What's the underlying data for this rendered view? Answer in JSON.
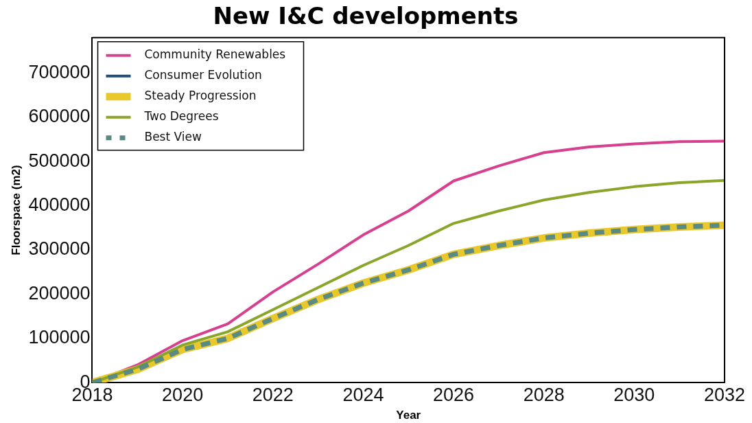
{
  "chart_data": {
    "type": "line",
    "title": "New I&C developments",
    "xlabel": "Year",
    "ylabel": "Floorspace (m2)",
    "x": [
      2018,
      2019,
      2020,
      2021,
      2022,
      2023,
      2024,
      2025,
      2026,
      2027,
      2028,
      2029,
      2030,
      2031,
      2032
    ],
    "series": [
      {
        "name": "Community Renewables",
        "color": "#d6408f",
        "values": [
          0,
          40000,
          95000,
          133000,
          205000,
          268000,
          334000,
          388000,
          456000,
          490000,
          520000,
          533000,
          540000,
          545000,
          546000
        ]
      },
      {
        "name": "Consumer Evolution",
        "color": "#1f4e79",
        "values": [
          null,
          null,
          null,
          null,
          null,
          null,
          null,
          null,
          null,
          null,
          null,
          null,
          null,
          null,
          null
        ]
      },
      {
        "name": "Steady Progression",
        "color": "#e8c82a",
        "values": [
          0,
          30000,
          75000,
          100000,
          145000,
          188000,
          225000,
          255000,
          290000,
          310000,
          327000,
          338000,
          346000,
          352000,
          356000
        ]
      },
      {
        "name": "Two Degrees",
        "color": "#8aa62a",
        "values": [
          0,
          35000,
          85000,
          115000,
          165000,
          215000,
          265000,
          310000,
          360000,
          388000,
          413000,
          430000,
          443000,
          452000,
          457000
        ]
      },
      {
        "name": "Best View",
        "color": "#5a8a82",
        "line_style": "dashed",
        "values": [
          0,
          30000,
          75000,
          100000,
          145000,
          188000,
          225000,
          255000,
          290000,
          310000,
          327000,
          338000,
          346000,
          352000,
          356000
        ]
      }
    ],
    "xlim": [
      2018,
      2032
    ],
    "xticks": [
      2018,
      2020,
      2022,
      2024,
      2026,
      2028,
      2030,
      2032
    ],
    "ylim": [
      0,
      780000
    ],
    "yticks": [
      0,
      100000,
      200000,
      300000,
      400000,
      500000,
      600000,
      700000
    ],
    "grid": false,
    "legend": "top left",
    "marker": "none",
    "line_style": "solid"
  }
}
